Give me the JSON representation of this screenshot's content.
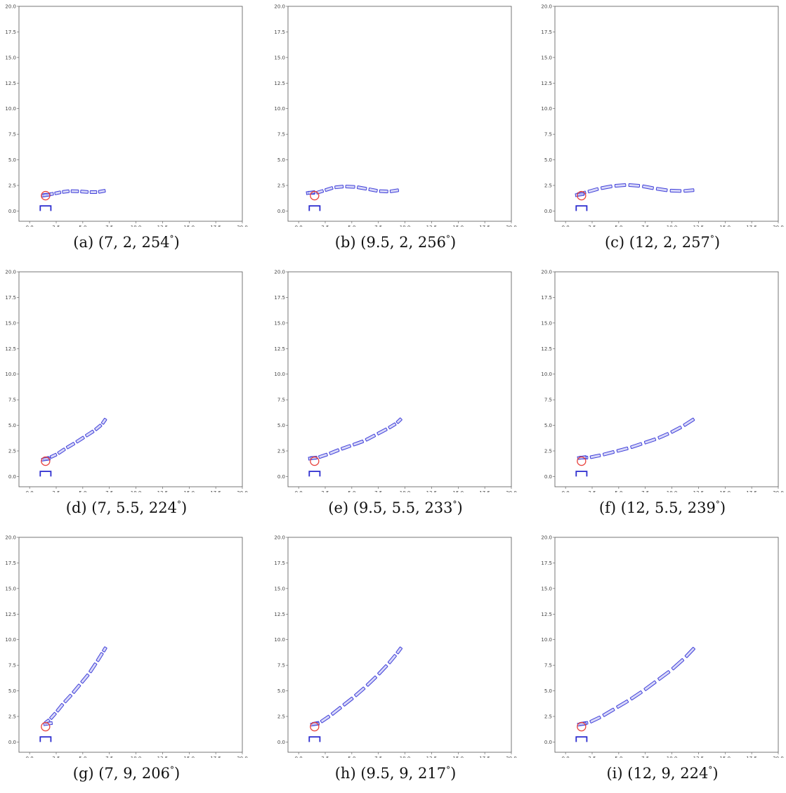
{
  "chart_data": [
    {
      "type": "scatter",
      "caption_label": "(a)",
      "caption_values": "(7, 2, 254",
      "degree_symbol": "°",
      "xlim": [
        -1,
        20
      ],
      "ylim": [
        -1,
        20
      ],
      "x_ticks": [
        "0.0",
        "2.5",
        "5.0",
        "7.5",
        "10.0",
        "12.5",
        "15.0",
        "17.5",
        "20.0"
      ],
      "y_ticks": [
        "0.0",
        "2.5",
        "5.0",
        "7.5",
        "10.0",
        "12.5",
        "15.0",
        "17.5",
        "20.0"
      ],
      "circle": {
        "x": 1.5,
        "y": 1.5
      },
      "bracket": {
        "x": [
          1,
          2
        ],
        "y": [
          0,
          0.5
        ]
      },
      "chain": [
        [
          1.2,
          1.55
        ],
        [
          1.7,
          1.6
        ],
        [
          2.3,
          1.7
        ],
        [
          3.0,
          1.85
        ],
        [
          3.8,
          1.95
        ],
        [
          4.7,
          1.92
        ],
        [
          5.6,
          1.85
        ],
        [
          6.4,
          1.85
        ],
        [
          7.2,
          2.0
        ]
      ]
    },
    {
      "type": "scatter",
      "caption_label": "(b)",
      "caption_values": "(9.5, 2, 256",
      "degree_symbol": "°",
      "xlim": [
        -1,
        20
      ],
      "ylim": [
        -1,
        20
      ],
      "x_ticks": [
        "0.0",
        "2.5",
        "5.0",
        "7.5",
        "10.0",
        "12.5",
        "15.0",
        "17.5",
        "20.0"
      ],
      "y_ticks": [
        "0.0",
        "2.5",
        "5.0",
        "7.5",
        "10.0",
        "12.5",
        "15.0",
        "17.5",
        "20.0"
      ],
      "circle": {
        "x": 1.5,
        "y": 1.5
      },
      "bracket": {
        "x": [
          1,
          2
        ],
        "y": [
          0,
          0.5
        ]
      },
      "chain": [
        [
          0.8,
          1.8
        ],
        [
          1.6,
          1.75
        ],
        [
          2.4,
          2.0
        ],
        [
          3.3,
          2.3
        ],
        [
          4.3,
          2.4
        ],
        [
          5.4,
          2.35
        ],
        [
          6.5,
          2.15
        ],
        [
          7.5,
          1.95
        ],
        [
          8.5,
          1.9
        ],
        [
          9.5,
          2.05
        ]
      ]
    },
    {
      "type": "scatter",
      "caption_label": "(c)",
      "caption_values": "(12, 2, 257",
      "degree_symbol": "°",
      "xlim": [
        -1,
        20
      ],
      "ylim": [
        -1,
        20
      ],
      "x_ticks": [
        "0.0",
        "2.5",
        "5.0",
        "7.5",
        "10.0",
        "12.5",
        "15.0",
        "17.5",
        "20.0"
      ],
      "y_ticks": [
        "0.0",
        "2.5",
        "5.0",
        "7.5",
        "10.0",
        "12.5",
        "15.0",
        "17.5",
        "20.0"
      ],
      "circle": {
        "x": 1.5,
        "y": 1.5
      },
      "bracket": {
        "x": [
          1,
          2
        ],
        "y": [
          0,
          0.5
        ]
      },
      "chain": [
        [
          1.0,
          1.6
        ],
        [
          2.0,
          1.85
        ],
        [
          3.2,
          2.2
        ],
        [
          4.5,
          2.45
        ],
        [
          5.8,
          2.55
        ],
        [
          7.1,
          2.45
        ],
        [
          8.4,
          2.2
        ],
        [
          9.7,
          2.0
        ],
        [
          11.0,
          1.95
        ],
        [
          12.2,
          2.05
        ]
      ]
    },
    {
      "type": "scatter",
      "caption_label": "(d)",
      "caption_values": "(7, 5.5, 224",
      "degree_symbol": "°",
      "xlim": [
        -1,
        20
      ],
      "ylim": [
        -1,
        20
      ],
      "x_ticks": [
        "0.0",
        "2.5",
        "5.0",
        "7.5",
        "10.0",
        "12.5",
        "15.0",
        "17.5",
        "20.0"
      ],
      "y_ticks": [
        "0.0",
        "2.5",
        "5.0",
        "7.5",
        "10.0",
        "12.5",
        "15.0",
        "17.5",
        "20.0"
      ],
      "circle": {
        "x": 1.5,
        "y": 1.5
      },
      "bracket": {
        "x": [
          1,
          2
        ],
        "y": [
          0,
          0.5
        ]
      },
      "chain": [
        [
          1.2,
          1.7
        ],
        [
          1.9,
          1.85
        ],
        [
          2.6,
          2.2
        ],
        [
          3.4,
          2.75
        ],
        [
          4.3,
          3.3
        ],
        [
          5.2,
          3.9
        ],
        [
          6.1,
          4.5
        ],
        [
          6.8,
          5.1
        ],
        [
          7.2,
          5.7
        ]
      ]
    },
    {
      "type": "scatter",
      "caption_label": "(e)",
      "caption_values": "(9.5, 5.5, 233",
      "degree_symbol": "°",
      "xlim": [
        -1,
        20
      ],
      "ylim": [
        -1,
        20
      ],
      "x_ticks": [
        "0.0",
        "2.5",
        "5.0",
        "7.5",
        "10.0",
        "12.5",
        "15.0",
        "17.5",
        "20.0"
      ],
      "y_ticks": [
        "0.0",
        "2.5",
        "5.0",
        "7.5",
        "10.0",
        "12.5",
        "15.0",
        "17.5",
        "20.0"
      ],
      "circle": {
        "x": 1.5,
        "y": 1.5
      },
      "bracket": {
        "x": [
          1,
          2
        ],
        "y": [
          0,
          0.5
        ]
      },
      "chain": [
        [
          1.0,
          1.8
        ],
        [
          1.8,
          1.85
        ],
        [
          2.8,
          2.2
        ],
        [
          3.9,
          2.65
        ],
        [
          5.0,
          3.05
        ],
        [
          6.2,
          3.5
        ],
        [
          7.3,
          4.1
        ],
        [
          8.4,
          4.7
        ],
        [
          9.2,
          5.2
        ],
        [
          9.7,
          5.7
        ]
      ]
    },
    {
      "type": "scatter",
      "caption_label": "(f)",
      "caption_values": "(12, 5.5, 239",
      "degree_symbol": "°",
      "xlim": [
        -1,
        20
      ],
      "ylim": [
        -1,
        20
      ],
      "x_ticks": [
        "0.0",
        "2.5",
        "5.0",
        "7.5",
        "10.0",
        "12.5",
        "15.0",
        "17.5",
        "20.0"
      ],
      "y_ticks": [
        "0.0",
        "2.5",
        "5.0",
        "7.5",
        "10.0",
        "12.5",
        "15.0",
        "17.5",
        "20.0"
      ],
      "circle": {
        "x": 1.5,
        "y": 1.5
      },
      "bracket": {
        "x": [
          1,
          2
        ],
        "y": [
          0,
          0.5
        ]
      },
      "chain": [
        [
          1.2,
          1.85
        ],
        [
          2.2,
          1.85
        ],
        [
          3.4,
          2.1
        ],
        [
          4.7,
          2.45
        ],
        [
          6.0,
          2.8
        ],
        [
          7.3,
          3.25
        ],
        [
          8.6,
          3.7
        ],
        [
          9.8,
          4.25
        ],
        [
          11.0,
          4.9
        ],
        [
          12.2,
          5.7
        ]
      ]
    },
    {
      "type": "scatter",
      "caption_label": "(g)",
      "caption_values": "(7, 9, 206",
      "degree_symbol": "°",
      "xlim": [
        -1,
        20
      ],
      "ylim": [
        -1,
        20
      ],
      "x_ticks": [
        "0.0",
        "2.5",
        "5.0",
        "7.5",
        "10.0",
        "12.5",
        "15.0",
        "17.5",
        "20.0"
      ],
      "y_ticks": [
        "0.0",
        "2.5",
        "5.0",
        "7.5",
        "10.0",
        "12.5",
        "15.0",
        "17.5",
        "20.0"
      ],
      "circle": {
        "x": 1.5,
        "y": 1.5
      },
      "bracket": {
        "x": [
          1,
          2
        ],
        "y": [
          0,
          0.5
        ]
      },
      "chain": [
        [
          1.4,
          1.8
        ],
        [
          1.9,
          2.2
        ],
        [
          2.5,
          2.9
        ],
        [
          3.2,
          3.8
        ],
        [
          4.0,
          4.7
        ],
        [
          4.8,
          5.7
        ],
        [
          5.6,
          6.7
        ],
        [
          6.3,
          7.8
        ],
        [
          6.9,
          8.8
        ],
        [
          7.2,
          9.3
        ]
      ]
    },
    {
      "type": "scatter",
      "caption_label": "(h)",
      "caption_values": "(9.5, 9, 217",
      "degree_symbol": "°",
      "xlim": [
        -1,
        20
      ],
      "ylim": [
        -1,
        20
      ],
      "x_ticks": [
        "0.0",
        "2.5",
        "5.0",
        "7.5",
        "10.0",
        "12.5",
        "15.0",
        "17.5",
        "20.0"
      ],
      "y_ticks": [
        "0.0",
        "2.5",
        "5.0",
        "7.5",
        "10.0",
        "12.5",
        "15.0",
        "17.5",
        "20.0"
      ],
      "circle": {
        "x": 1.5,
        "y": 1.5
      },
      "bracket": {
        "x": [
          1,
          2
        ],
        "y": [
          0,
          0.5
        ]
      },
      "chain": [
        [
          1.2,
          1.75
        ],
        [
          2.0,
          1.9
        ],
        [
          3.0,
          2.6
        ],
        [
          4.1,
          3.5
        ],
        [
          5.2,
          4.4
        ],
        [
          6.3,
          5.4
        ],
        [
          7.4,
          6.5
        ],
        [
          8.4,
          7.6
        ],
        [
          9.2,
          8.6
        ],
        [
          9.7,
          9.3
        ]
      ]
    },
    {
      "type": "scatter",
      "caption_label": "(i)",
      "caption_values": "(12, 9, 224",
      "degree_symbol": "°",
      "xlim": [
        -1,
        20
      ],
      "ylim": [
        -1,
        20
      ],
      "x_ticks": [
        "0.0",
        "2.5",
        "5.0",
        "7.5",
        "10.0",
        "12.5",
        "15.0",
        "17.5",
        "20.0"
      ],
      "y_ticks": [
        "0.0",
        "2.5",
        "5.0",
        "7.5",
        "10.0",
        "12.5",
        "15.0",
        "17.5",
        "20.0"
      ],
      "circle": {
        "x": 1.5,
        "y": 1.5
      },
      "bracket": {
        "x": [
          1,
          2
        ],
        "y": [
          0,
          0.5
        ]
      },
      "chain": [
        [
          1.2,
          1.75
        ],
        [
          2.2,
          1.9
        ],
        [
          3.4,
          2.5
        ],
        [
          4.7,
          3.3
        ],
        [
          6.0,
          4.1
        ],
        [
          7.3,
          5.0
        ],
        [
          8.6,
          6.0
        ],
        [
          9.9,
          7.0
        ],
        [
          11.2,
          8.2
        ],
        [
          12.2,
          9.3
        ]
      ]
    }
  ],
  "colors": {
    "chain": "#3f3fd9",
    "chain_fill": "#c8c8f5",
    "circle": "#e8413c",
    "bracket": "#2c2ccf",
    "axis": "#555555"
  }
}
